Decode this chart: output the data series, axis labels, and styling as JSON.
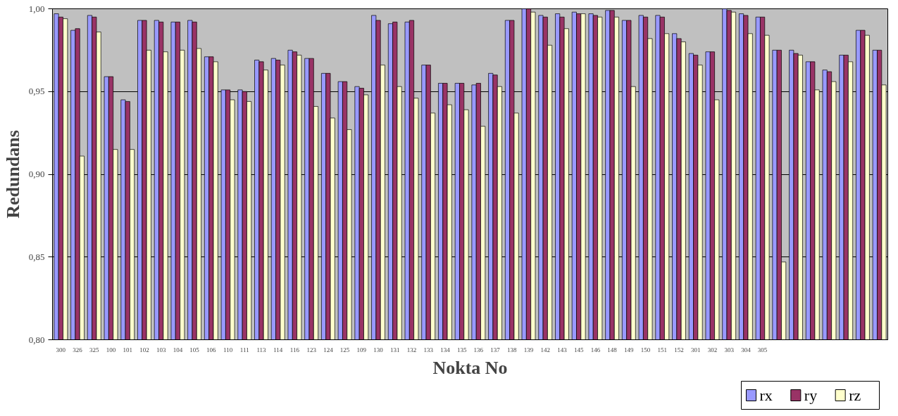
{
  "chart_data": {
    "type": "bar",
    "xlabel": "Nokta No",
    "ylabel": "Redundans",
    "categories": [
      "300",
      "326",
      "325",
      "100",
      "101",
      "102",
      "103",
      "104",
      "105",
      "106",
      "110",
      "111",
      "113",
      "114",
      "116",
      "123",
      "124",
      "125",
      "109",
      "130",
      "131",
      "132",
      "133",
      "134",
      "135",
      "136",
      "137",
      "138",
      "139",
      "142",
      "143",
      "145",
      "146",
      "148",
      "149",
      "150",
      "151",
      "152",
      "301",
      "302",
      "303",
      "304",
      "305",
      null,
      null,
      null,
      null,
      null,
      null,
      null
    ],
    "series": [
      {
        "name": "rx",
        "color": "#9999ff",
        "values": [
          0.997,
          0.987,
          0.996,
          0.959,
          0.945,
          0.993,
          0.993,
          0.992,
          0.993,
          0.971,
          0.951,
          0.951,
          0.969,
          0.97,
          0.975,
          0.97,
          0.961,
          0.956,
          0.953,
          0.996,
          0.991,
          0.992,
          0.966,
          0.955,
          0.955,
          0.954,
          0.961,
          0.993,
          1.0,
          0.996,
          0.997,
          0.998,
          0.997,
          0.999,
          0.993,
          0.996,
          0.996,
          0.985,
          0.973,
          0.974,
          1.0,
          0.997,
          0.995,
          0.975,
          0.975,
          0.968,
          0.963,
          0.972,
          0.987,
          0.975
        ]
      },
      {
        "name": "ry",
        "color": "#993366",
        "values": [
          0.995,
          0.988,
          0.995,
          0.959,
          0.944,
          0.993,
          0.992,
          0.992,
          0.992,
          0.971,
          0.951,
          0.95,
          0.968,
          0.969,
          0.974,
          0.97,
          0.961,
          0.956,
          0.952,
          0.993,
          0.992,
          0.993,
          0.966,
          0.955,
          0.955,
          0.955,
          0.96,
          0.993,
          1.0,
          0.995,
          0.995,
          0.997,
          0.996,
          0.999,
          0.993,
          0.995,
          0.995,
          0.982,
          0.972,
          0.974,
          0.999,
          0.996,
          0.995,
          0.975,
          0.973,
          0.968,
          0.962,
          0.972,
          0.987,
          0.975
        ]
      },
      {
        "name": "rz",
        "color": "#ffffcc",
        "values": [
          0.994,
          0.911,
          0.986,
          0.915,
          0.915,
          0.975,
          0.974,
          0.975,
          0.976,
          0.968,
          0.945,
          0.944,
          0.963,
          0.966,
          0.972,
          0.941,
          0.934,
          0.927,
          0.948,
          0.966,
          0.953,
          0.946,
          0.937,
          0.942,
          0.939,
          0.929,
          0.953,
          0.937,
          0.998,
          0.978,
          0.988,
          0.997,
          0.995,
          0.995,
          0.953,
          0.982,
          0.985,
          0.98,
          0.966,
          0.945,
          0.998,
          0.985,
          0.984,
          0.847,
          0.972,
          0.951,
          0.956,
          0.968,
          0.984,
          0.954
        ]
      }
    ],
    "ylim": [
      0.8,
      1.0
    ],
    "yticks": [
      {
        "value": 0.8,
        "label": "0,80"
      },
      {
        "value": 0.85,
        "label": "0,85"
      },
      {
        "value": 0.9,
        "label": "0,90"
      },
      {
        "value": 0.95,
        "label": "0,95"
      },
      {
        "value": 1.0,
        "label": "1,00"
      }
    ],
    "grid": "y",
    "legend": "bottom right"
  }
}
